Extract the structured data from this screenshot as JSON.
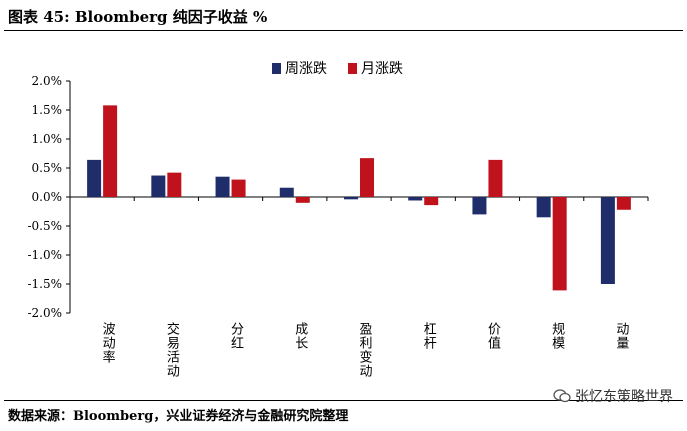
{
  "header": {
    "title": "图表 45:   Bloomberg 纯因子收益  %"
  },
  "footer": {
    "source": "数据来源：Bloomberg，兴业证券经济与金融研究院整理"
  },
  "watermark": {
    "text": "张忆东策略世界",
    "icon": "wechat-icon"
  },
  "chart_data": {
    "type": "bar",
    "title": "",
    "xlabel": "",
    "ylabel": "",
    "categories": [
      "波动率",
      "交易活动",
      "分红",
      "成长",
      "盈利变动",
      "杠杆",
      "价值",
      "规模",
      "动量"
    ],
    "series": [
      {
        "name": "周涨跌",
        "color": "#1f2d6b",
        "values": [
          0.64,
          0.37,
          0.35,
          0.16,
          -0.04,
          -0.06,
          -0.3,
          -0.35,
          -1.5
        ]
      },
      {
        "name": "月涨跌",
        "color": "#c0121c",
        "values": [
          1.58,
          0.42,
          0.3,
          -0.1,
          0.67,
          -0.14,
          0.64,
          -1.61,
          -0.22
        ]
      }
    ],
    "ylim": [
      -2.0,
      2.0
    ],
    "yticks": [
      2.0,
      1.5,
      1.0,
      0.5,
      0.0,
      -0.5,
      -1.0,
      -1.5,
      -2.0
    ],
    "ytick_labels": [
      "2.0%",
      "1.5%",
      "1.0%",
      "0.5%",
      "0.0%",
      "-0.5%",
      "-1.0%",
      "-1.5%",
      "-2.0%"
    ],
    "grid": false,
    "legend_position": "top-center"
  }
}
